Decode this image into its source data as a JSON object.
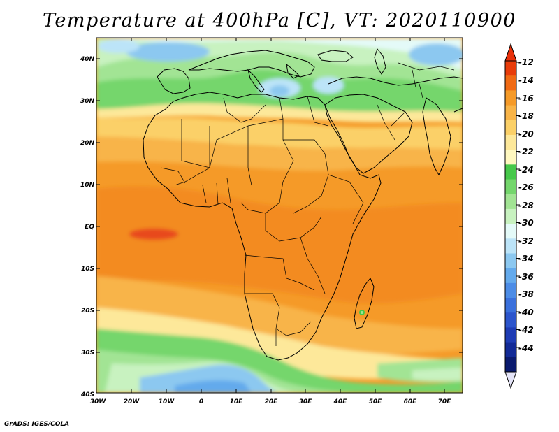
{
  "title": "Temperature at 400hPa [C], VT: 2020110900",
  "credit": "GrADS: IGES/COLA",
  "latitude_labels": [
    "40N",
    "30N",
    "20N",
    "10N",
    "EQ",
    "10S",
    "20S",
    "30S",
    "40S"
  ],
  "longitude_labels": [
    "30W",
    "20W",
    "10W",
    "0",
    "10E",
    "20E",
    "30E",
    "40E",
    "50E",
    "60E",
    "70E"
  ],
  "colorbar": {
    "levels": [
      "-12",
      "-14",
      "-16",
      "-18",
      "-20",
      "-22",
      "-24",
      "-26",
      "-28",
      "-30",
      "-32",
      "-34",
      "-36",
      "-38",
      "-40",
      "-42",
      "-44"
    ],
    "colors": [
      "#e83c0a",
      "#f06a14",
      "#f59a28",
      "#f8b448",
      "#fbd068",
      "#fde89a",
      "#fff8c0",
      "#46c84a",
      "#74d66c",
      "#a2e494",
      "#c8f2c0",
      "#e4faf8",
      "#bce4f8",
      "#8cc8f0",
      "#64aaec",
      "#4c8ce6",
      "#3a70dc",
      "#2c55cc",
      "#1e3cb4",
      "#122a96",
      "#0a1a6e"
    ],
    "top_arrow_color": "#e8300a",
    "bottom_arrow_color": "#e4e4f8"
  }
}
